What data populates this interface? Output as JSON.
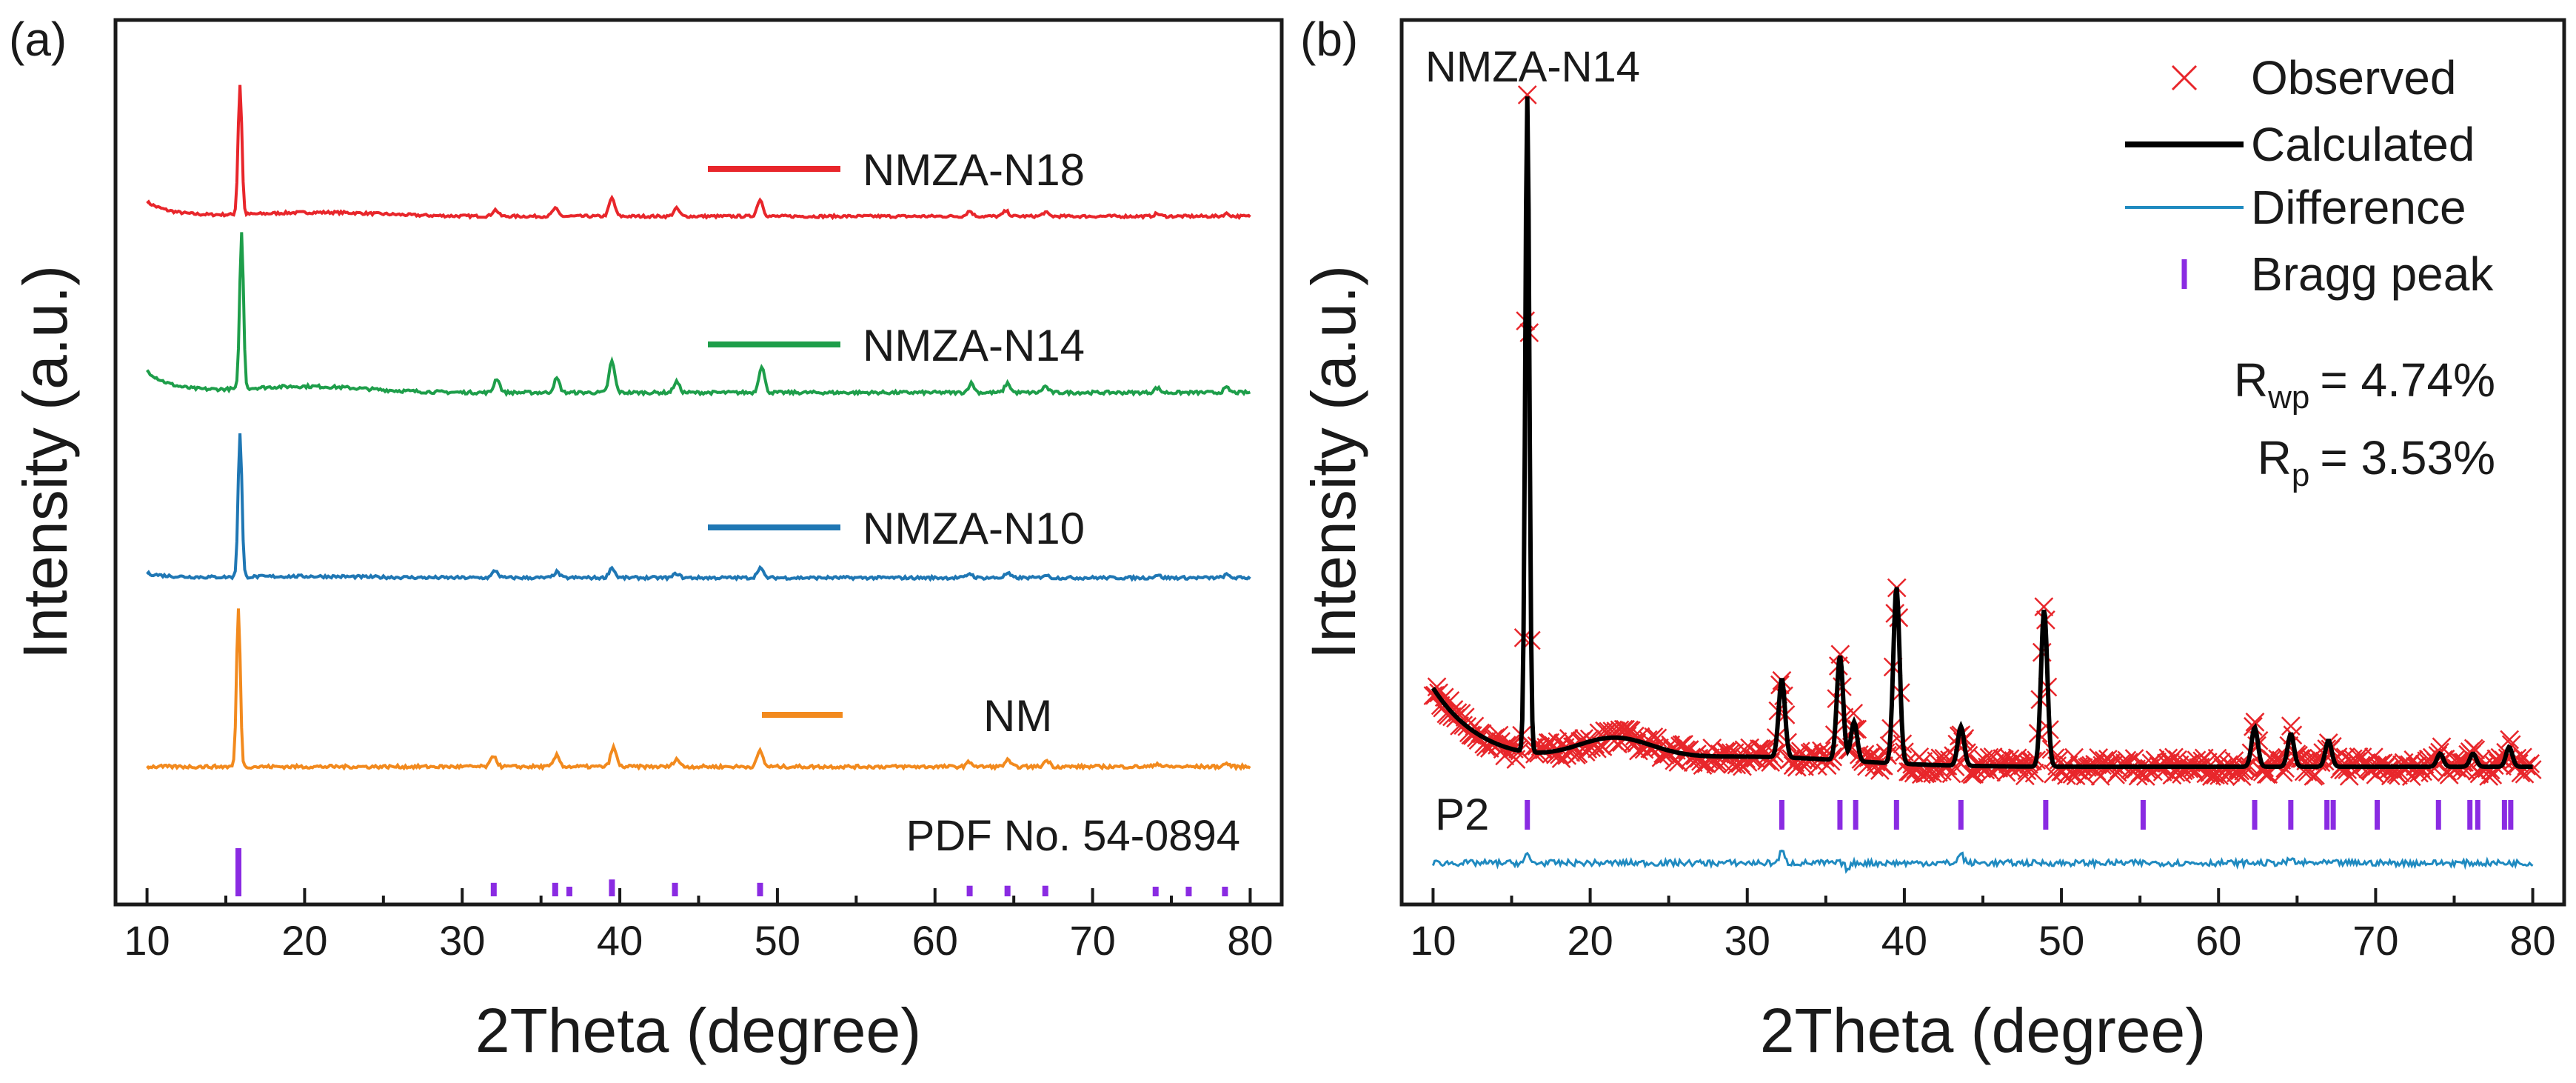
{
  "chart_data": [
    {
      "panel": "(a)",
      "type": "line",
      "xlabel": "2Theta (degree)",
      "ylabel": "Intensity (a.u.)",
      "xlim": [
        8,
        82
      ],
      "xticks": [
        10,
        20,
        30,
        40,
        50,
        60,
        70,
        80
      ],
      "reference_label": "PDF No. 54-0894",
      "reference_color": "#8a2be2",
      "reference_peaks": [
        {
          "x": 15.8,
          "h": 1.0
        },
        {
          "x": 32.0,
          "h": 0.28
        },
        {
          "x": 35.9,
          "h": 0.28
        },
        {
          "x": 36.8,
          "h": 0.2
        },
        {
          "x": 39.5,
          "h": 0.35
        },
        {
          "x": 43.5,
          "h": 0.28
        },
        {
          "x": 48.9,
          "h": 0.28
        },
        {
          "x": 62.2,
          "h": 0.22
        },
        {
          "x": 64.6,
          "h": 0.22
        },
        {
          "x": 67.0,
          "h": 0.22
        },
        {
          "x": 74.0,
          "h": 0.2
        },
        {
          "x": 76.1,
          "h": 0.2
        },
        {
          "x": 78.4,
          "h": 0.2
        }
      ],
      "series": [
        {
          "name": "NMZA-N18",
          "color": "#e8262b",
          "peaks": [
            [
              15.9,
              1.0
            ],
            [
              32.1,
              0.05
            ],
            [
              35.9,
              0.06
            ],
            [
              39.5,
              0.14
            ],
            [
              43.6,
              0.06
            ],
            [
              48.9,
              0.13
            ],
            [
              62.2,
              0.04
            ],
            [
              64.5,
              0.04
            ],
            [
              67.0,
              0.03
            ],
            [
              74.1,
              0.02
            ],
            [
              78.5,
              0.02
            ]
          ],
          "hump": [
            [
              10.5,
              0.11
            ],
            [
              12.0,
              0.05
            ],
            [
              21.0,
              0.03
            ]
          ]
        },
        {
          "name": "NMZA-N14",
          "color": "#1e9e4a",
          "peaks": [
            [
              16.0,
              1.0
            ],
            [
              32.2,
              0.09
            ],
            [
              36.0,
              0.09
            ],
            [
              39.5,
              0.2
            ],
            [
              43.6,
              0.07
            ],
            [
              49.0,
              0.17
            ],
            [
              62.3,
              0.06
            ],
            [
              64.6,
              0.06
            ],
            [
              67.0,
              0.04
            ],
            [
              74.1,
              0.03
            ],
            [
              78.5,
              0.03
            ]
          ],
          "hump": [
            [
              10.5,
              0.14
            ],
            [
              12.0,
              0.08
            ],
            [
              20.0,
              0.04
            ]
          ]
        },
        {
          "name": "NMZA-N10",
          "color": "#1f77b4",
          "peaks": [
            [
              15.9,
              1.0
            ],
            [
              32.1,
              0.05
            ],
            [
              36.0,
              0.04
            ],
            [
              39.5,
              0.07
            ],
            [
              43.6,
              0.03
            ],
            [
              48.9,
              0.07
            ],
            [
              62.2,
              0.03
            ],
            [
              64.6,
              0.03
            ],
            [
              67.0,
              0.02
            ],
            [
              74.1,
              0.02
            ],
            [
              78.5,
              0.02
            ]
          ],
          "hump": [
            [
              10.5,
              0.03
            ],
            [
              12.0,
              0.02
            ],
            [
              20.0,
              0.01
            ]
          ]
        },
        {
          "name": "NM",
          "color": "#f28a1e",
          "peaks": [
            [
              15.8,
              1.0
            ],
            [
              32.0,
              0.07
            ],
            [
              36.0,
              0.07
            ],
            [
              39.6,
              0.12
            ],
            [
              43.6,
              0.05
            ],
            [
              48.9,
              0.1
            ],
            [
              62.2,
              0.03
            ],
            [
              64.6,
              0.04
            ],
            [
              67.1,
              0.04
            ],
            [
              74.1,
              0.02
            ],
            [
              78.5,
              0.02
            ]
          ],
          "hump": [
            [
              10.5,
              0.0
            ],
            [
              12.0,
              0.0
            ],
            [
              20.0,
              0.0
            ]
          ]
        }
      ]
    },
    {
      "panel": "(b)",
      "type": "scatter",
      "sample": "NMZA-N14",
      "xlabel": "2Theta (degree)",
      "ylabel": "Intensity (a.u.)",
      "xlim": [
        8,
        82
      ],
      "xticks": [
        10,
        20,
        30,
        40,
        50,
        60,
        70,
        80
      ],
      "legend": [
        {
          "label": "Observed",
          "color": "#e8262b",
          "marker": "x"
        },
        {
          "label": "Calculated",
          "color": "#000000",
          "marker": "line"
        },
        {
          "label": "Difference",
          "color": "#1f8ac0",
          "marker": "line"
        },
        {
          "label": "Bragg peak",
          "color": "#8a2be2",
          "marker": "tick"
        }
      ],
      "rwp": {
        "symbol": "R",
        "sub": "wp",
        "value": "= 4.74%"
      },
      "rp": {
        "symbol": "R",
        "sub": "p",
        "value": "= 3.53%"
      },
      "phase_label": "P2",
      "calc_peaks": [
        [
          16.0,
          1.0
        ],
        [
          32.2,
          0.12
        ],
        [
          35.9,
          0.16
        ],
        [
          36.8,
          0.06
        ],
        [
          39.5,
          0.27
        ],
        [
          43.6,
          0.06
        ],
        [
          48.9,
          0.24
        ],
        [
          62.3,
          0.06
        ],
        [
          64.6,
          0.05
        ],
        [
          67.0,
          0.04
        ],
        [
          74.1,
          0.02
        ],
        [
          76.2,
          0.02
        ],
        [
          78.5,
          0.03
        ]
      ],
      "bragg_positions": [
        16.0,
        32.2,
        35.9,
        36.9,
        39.5,
        43.6,
        49.0,
        55.2,
        62.3,
        64.6,
        66.9,
        67.3,
        70.1,
        74.0,
        76.0,
        76.5,
        78.2,
        78.6
      ],
      "diff_spikes": [
        [
          16.0,
          0.012
        ],
        [
          32.2,
          0.018
        ],
        [
          36.4,
          -0.01
        ],
        [
          43.6,
          0.015
        ],
        [
          64.6,
          0.006
        ]
      ]
    }
  ],
  "panels": {
    "a_label": "(a)",
    "b_label": "(b)"
  }
}
